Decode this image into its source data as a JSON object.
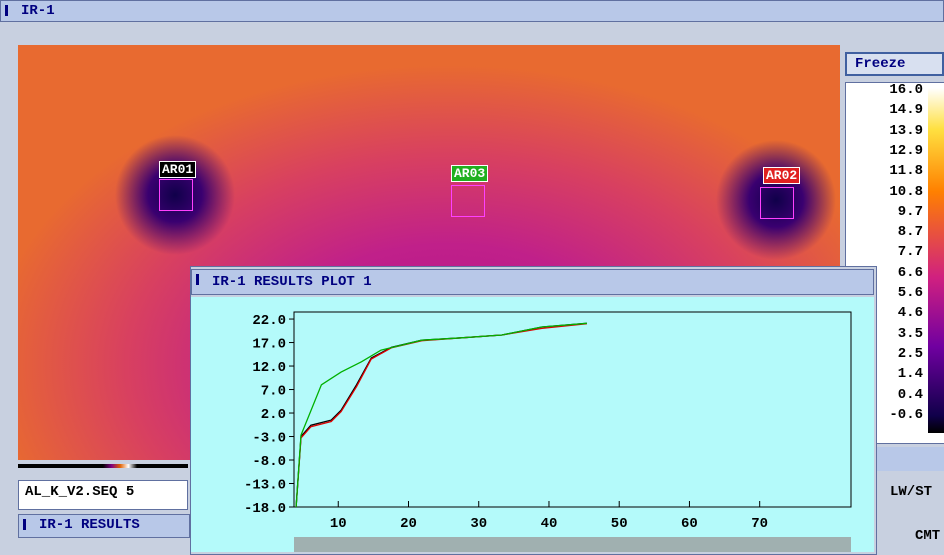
{
  "window": {
    "title": "IR-1"
  },
  "image": {
    "rois": [
      "AR01",
      "AR03",
      "AR02"
    ]
  },
  "freeze_button": "Freeze",
  "scale_labels": [
    "16.0",
    "14.9",
    "13.9",
    "12.9",
    "11.8",
    "10.8",
    "9.7",
    "8.7",
    "7.7",
    "6.6",
    "5.6",
    "4.6",
    "3.5",
    "2.5",
    "1.4",
    "0.4",
    "-0.6"
  ],
  "file_label": "AL_K_V2.SEQ 5",
  "side_label": "LW/ST",
  "side_label2": "CMT",
  "results_window": {
    "title": "IR-1 RESULTS"
  },
  "plot": {
    "type": "line",
    "title": "IR-1 RESULTS PLOT 1",
    "xlim": [
      3.7,
      83
    ],
    "ylim": [
      -18,
      23.5
    ],
    "xticks": [
      10,
      20,
      30,
      40,
      50,
      60,
      70
    ],
    "yticks": [
      {
        "value": 22,
        "label": "22.0"
      },
      {
        "value": 17,
        "label": "17.0"
      },
      {
        "value": 12,
        "label": "12.0"
      },
      {
        "value": 7,
        "label": "7.0"
      },
      {
        "value": 2,
        "label": "2.0"
      },
      {
        "value": -3,
        "label": "-3.0"
      },
      {
        "value": -8,
        "label": "-8.0"
      },
      {
        "value": -13,
        "label": "-13.0"
      },
      {
        "value": -18,
        "label": "-18.0"
      }
    ],
    "series": [
      {
        "color": "#000000",
        "x": [
          4.0,
          4.7,
          6.1,
          9.0,
          10.4,
          12.6,
          14.7,
          17.6,
          21.9,
          27.6,
          33.3,
          39.0,
          45.4
        ],
        "y": [
          -18,
          -3,
          -0.6,
          0.5,
          2.6,
          8,
          13.7,
          16,
          17.5,
          18,
          18.6,
          20.3,
          21.1
        ]
      },
      {
        "color": "#e00000",
        "x": [
          4.0,
          4.7,
          6.1,
          9.0,
          10.4,
          12.6,
          14.7,
          17.6,
          21.9,
          27.6,
          33.3,
          39.0,
          45.4
        ],
        "y": [
          -18,
          -3.3,
          -0.9,
          0.2,
          2.3,
          7.6,
          13.5,
          15.9,
          17.4,
          18,
          18.6,
          20.0,
          21.0
        ]
      },
      {
        "color": "#00b000",
        "x": [
          4.0,
          4.7,
          7.6,
          10.4,
          13.3,
          16.1,
          21.9,
          27.6,
          33.3,
          39.0,
          45.4
        ],
        "y": [
          -18,
          -2.7,
          8,
          10.7,
          12.9,
          15.4,
          17.5,
          18,
          18.6,
          20.3,
          21.1
        ]
      }
    ]
  }
}
